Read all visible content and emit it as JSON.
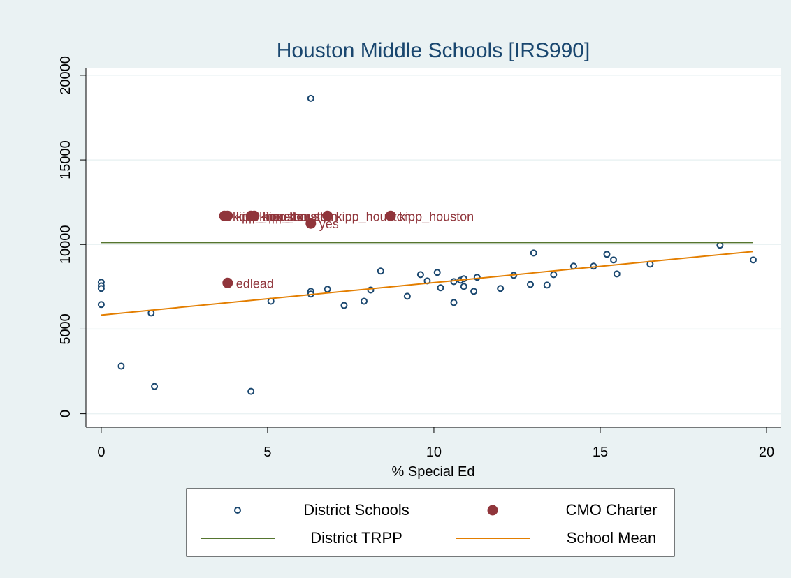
{
  "chart_data": {
    "type": "scatter",
    "title": "Houston Middle Schools [IRS990]",
    "x_label": "% Special Ed",
    "xlim": [
      -0.46,
      20.42
    ],
    "xticks": [
      0,
      5,
      10,
      15,
      20
    ],
    "ylim": [
      -800,
      20450
    ],
    "yticks": [
      0,
      5000,
      10000,
      15000,
      20000
    ],
    "grid": true,
    "legend_position": "bottom",
    "series": [
      {
        "name": "District Schools",
        "kind": "scatter",
        "marker": "hollow",
        "color": "#1a476f",
        "x": [
          0,
          0,
          0,
          0,
          0.6,
          1.5,
          1.6,
          4.5,
          5.1,
          6.3,
          6.3,
          6.3,
          6.8,
          7.3,
          7.9,
          8.1,
          8.4,
          9.2,
          9.6,
          9.8,
          10.1,
          10.2,
          10.6,
          10.6,
          10.8,
          10.9,
          10.9,
          11.2,
          11.3,
          12.0,
          12.4,
          12.9,
          13.0,
          13.4,
          13.6,
          14.2,
          14.8,
          15.2,
          15.4,
          15.5,
          16.5,
          18.6,
          19.6
        ],
        "values": [
          7770,
          7560,
          7400,
          6450,
          2810,
          5950,
          1610,
          1320,
          6650,
          18640,
          7230,
          7070,
          7360,
          6400,
          6650,
          7310,
          8430,
          6940,
          8220,
          7850,
          8350,
          7440,
          7810,
          6570,
          7890,
          7980,
          7520,
          7230,
          8060,
          7400,
          8180,
          7640,
          9500,
          7600,
          8220,
          8720,
          8720,
          9420,
          9090,
          8260,
          8840,
          9960,
          9090
        ]
      },
      {
        "name": "CMO Charter",
        "kind": "scatter",
        "marker": "filled",
        "color": "#90353b",
        "x": [
          3.7,
          3.8,
          4.5,
          4.6,
          6.8,
          8.7,
          6.3,
          3.8
        ],
        "values": [
          11690,
          11690,
          11690,
          11690,
          11690,
          11690,
          11240,
          7730
        ],
        "point_labels": [
          "kipp_houston",
          "kipp_houston",
          "kipp_houston",
          "kipp_houston",
          "kipp_houston",
          "kipp_houston",
          "yes",
          "edlead"
        ]
      },
      {
        "name": "District TRPP",
        "kind": "line",
        "color": "#55752f",
        "x": [
          0,
          19.6
        ],
        "values": [
          10120,
          10120
        ]
      },
      {
        "name": "School Mean",
        "kind": "line",
        "color": "#e37e00",
        "x": [
          0,
          19.6
        ],
        "values": [
          5830,
          9590
        ]
      }
    ]
  }
}
